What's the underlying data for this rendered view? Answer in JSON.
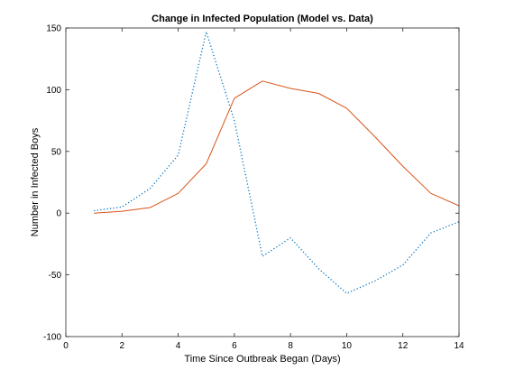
{
  "chart_data": {
    "type": "line",
    "title": "Change in Infected Population (Model vs. Data)",
    "xlabel": "Time Since Outbreak Began (Days)",
    "ylabel": "Number in Infected Boys",
    "xlim": [
      0,
      14
    ],
    "ylim": [
      -100,
      150
    ],
    "xticks": [
      0,
      2,
      4,
      6,
      8,
      10,
      12,
      14
    ],
    "yticks": [
      -100,
      -50,
      0,
      50,
      100,
      150
    ],
    "grid": false,
    "series": [
      {
        "color": "#0072BD",
        "style": "dotted",
        "x": [
          1,
          2,
          3,
          4,
          5,
          6,
          7,
          8,
          9,
          10,
          11,
          12,
          13,
          14
        ],
        "y": [
          2,
          5,
          20,
          47,
          147,
          75,
          -35,
          -20,
          -45,
          -65,
          -55,
          -42,
          -16,
          -7
        ]
      },
      {
        "color": "#D95319",
        "style": "solid",
        "x": [
          1,
          2,
          3,
          4,
          5,
          6,
          7,
          8,
          9,
          10,
          11,
          12,
          13,
          14
        ],
        "y": [
          0,
          1.5,
          4.5,
          16,
          40,
          93,
          107,
          101,
          97,
          85,
          62,
          38,
          16,
          6
        ]
      }
    ]
  }
}
